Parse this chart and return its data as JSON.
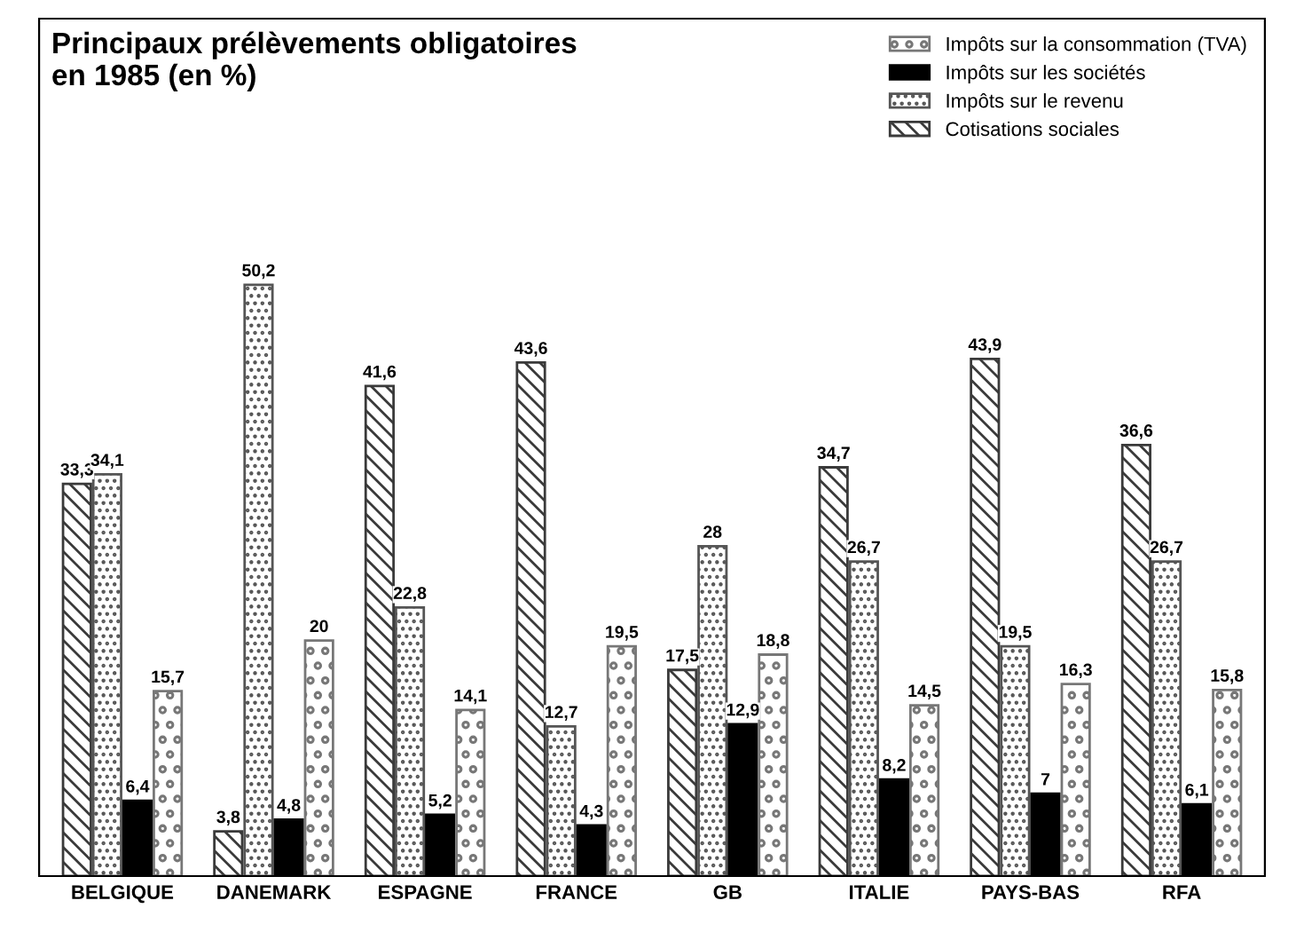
{
  "chart_data": {
    "type": "bar",
    "title": "Principaux prélèvements obligatoires\nen 1985 (en %)",
    "categories": [
      "BELGIQUE",
      "DANEMARK",
      "ESPAGNE",
      "FRANCE",
      "GB",
      "ITALIE",
      "PAYS-BAS",
      "RFA"
    ],
    "series": [
      {
        "name": "Cotisations sociales",
        "color": "#3a3a3a",
        "values": [
          33.3,
          3.8,
          41.6,
          43.6,
          17.5,
          34.7,
          43.9,
          36.6
        ],
        "value_labels": [
          "33,3",
          "3,8",
          "41,6",
          "43,6",
          "17,5",
          "34,7",
          "43,9",
          "36,6"
        ]
      },
      {
        "name": "Impôts sur le revenu",
        "color": "#555555",
        "values": [
          34.1,
          50.2,
          22.8,
          12.7,
          28,
          26.7,
          19.5,
          26.7
        ],
        "value_labels": [
          "34,1",
          "50,2",
          "22,8",
          "12,7",
          "28",
          "26,7",
          "19,5",
          "26,7"
        ]
      },
      {
        "name": "Impôts sur les sociétés",
        "color": "#000000",
        "values": [
          6.4,
          4.8,
          5.2,
          4.3,
          12.9,
          8.2,
          7,
          6.1
        ],
        "value_labels": [
          "6,4",
          "4,8",
          "5,2",
          "4,3",
          "12,9",
          "8,2",
          "7",
          "6,1"
        ]
      },
      {
        "name": "Impôts sur la consommation (TVA)",
        "color": "#777777",
        "values": [
          15.7,
          20,
          14.1,
          19.5,
          18.8,
          14.5,
          16.3,
          15.8
        ],
        "value_labels": [
          "15,7",
          "20",
          "14,1",
          "19,5",
          "18,8",
          "14,5",
          "16,3",
          "15,8"
        ]
      }
    ],
    "legend": "top right",
    "grid": false,
    "tick_labels": "x"
  }
}
